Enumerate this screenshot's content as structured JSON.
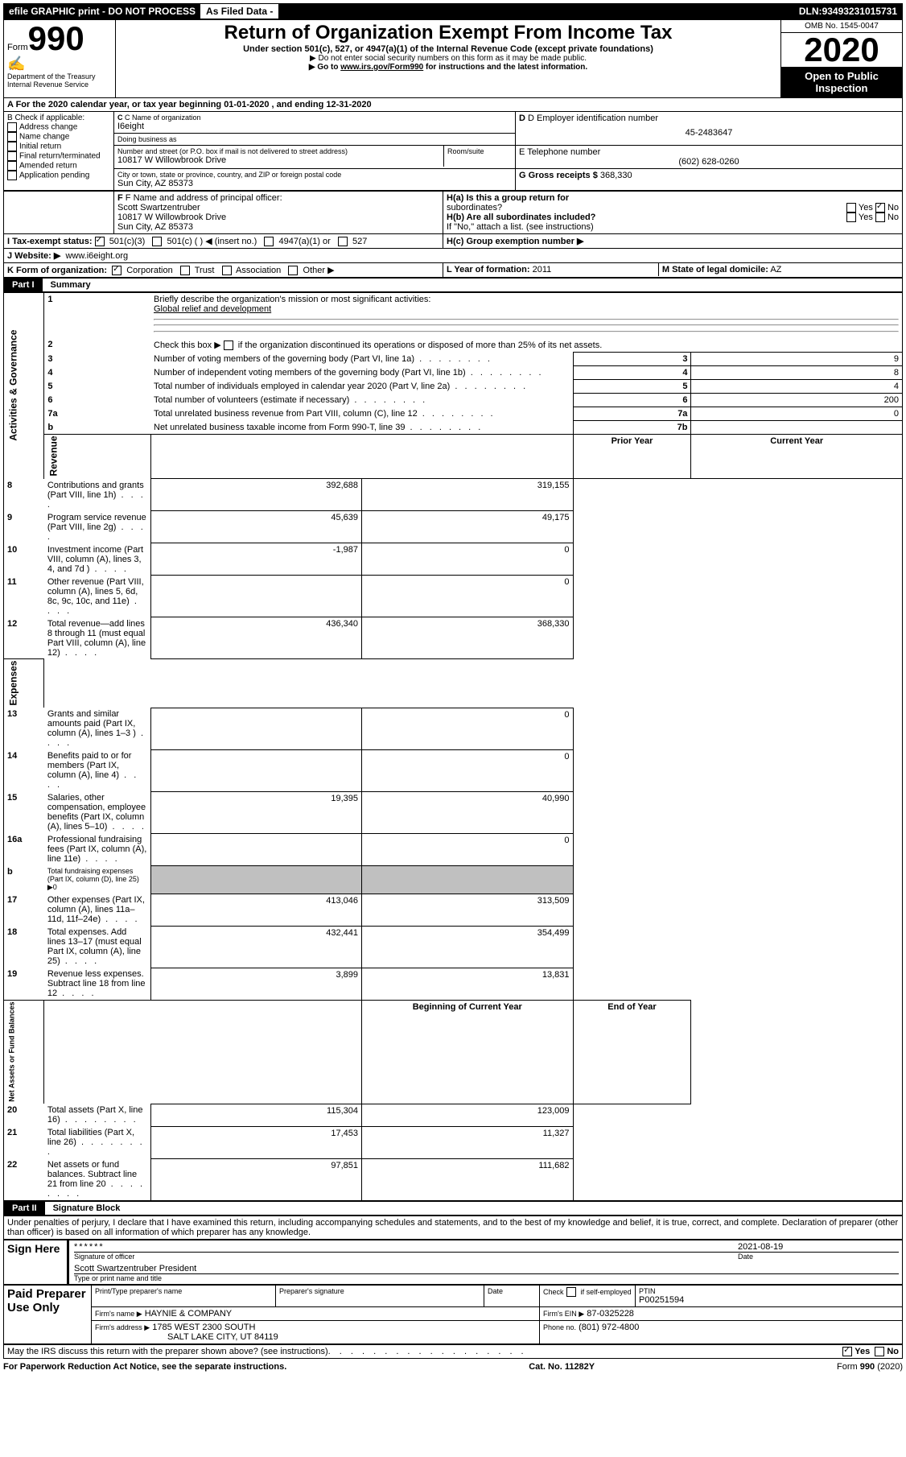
{
  "header": {
    "efile": "efile GRAPHIC print - DO NOT PROCESS",
    "asfiled": "As Filed Data -",
    "dln_label": "DLN:",
    "dln": "93493231015731"
  },
  "top": {
    "form": "Form",
    "num": "990",
    "dept1": "Department of the Treasury",
    "dept2": "Internal Revenue Service",
    "title": "Return of Organization Exempt From Income Tax",
    "sub": "Under section 501(c), 527, or 4947(a)(1) of the Internal Revenue Code (except private foundations)",
    "ssn": "▶ Do not enter social security numbers on this form as it may be made public.",
    "goto_pre": "▶ Go to ",
    "goto_link": "www.irs.gov/Form990",
    "goto_post": " for instructions and the latest information.",
    "omb": "OMB No. 1545-0047",
    "year": "2020",
    "open1": "Open to Public",
    "open2": "Inspection"
  },
  "a_line": "A  For the 2020 calendar year, or tax year beginning 01-01-2020   , and ending 12-31-2020",
  "b": {
    "header": "B Check if applicable:",
    "items": [
      "Address change",
      "Name change",
      "Initial return",
      "Final return/terminated",
      "Amended return",
      "Application pending"
    ]
  },
  "c": {
    "label": "C Name of organization",
    "name": "I6eight",
    "dba": "Doing business as",
    "street_label": "Number and street (or P.O. box if mail is not delivered to street address)",
    "room": "Room/suite",
    "street": "10817 W Willowbrook Drive",
    "city_label": "City or town, state or province, country, and ZIP or foreign postal code",
    "city": "Sun City, AZ  85373"
  },
  "d": {
    "label": "D Employer identification number",
    "val": "45-2483647"
  },
  "e": {
    "label": "E Telephone number",
    "val": "(602) 628-0260"
  },
  "g": {
    "label": "G Gross receipts $",
    "val": "368,330"
  },
  "f": {
    "label": "F  Name and address of principal officer:",
    "name": "Scott Swartzentruber",
    "street": "10817 W Willowbrook Drive",
    "city": "Sun City, AZ  85373"
  },
  "h": {
    "a": "H(a)  Is this a group return for",
    "a2": "subordinates?",
    "b": "H(b)  Are all subordinates included?",
    "note": "If \"No,\" attach a list. (see instructions)",
    "c": "H(c)  Group exemption number ▶",
    "yes": "Yes",
    "no": "No"
  },
  "i": {
    "label": "I  Tax-exempt status:",
    "o1": "501(c)(3)",
    "o2": "501(c) (   ) ◀ (insert no.)",
    "o3": "4947(a)(1) or",
    "o4": "527"
  },
  "j": {
    "label": "J  Website: ▶",
    "val": "www.i6eight.org"
  },
  "k": {
    "label": "K Form of organization:",
    "corp": "Corporation",
    "trust": "Trust",
    "assoc": "Association",
    "other": "Other ▶"
  },
  "l": {
    "label": "L Year of formation:",
    "val": "2011"
  },
  "m": {
    "label": "M State of legal domicile:",
    "val": "AZ"
  },
  "part1": {
    "num": "Part I",
    "title": "Summary"
  },
  "summary": {
    "side_ag": "Activities & Governance",
    "side_rev": "Revenue",
    "side_exp": "Expenses",
    "side_na": "Net Assets or Fund Balances",
    "l1": "Briefly describe the organization's mission or most significant activities:",
    "l1v": "Global relief and development",
    "l2": "Check this box ▶",
    "l2b": "if the organization discontinued its operations or disposed of more than 25% of its net assets.",
    "rows_ag": [
      {
        "n": "3",
        "t": "Number of voting members of the governing body (Part VI, line 1a)",
        "k": "3",
        "v": "9"
      },
      {
        "n": "4",
        "t": "Number of independent voting members of the governing body (Part VI, line 1b)",
        "k": "4",
        "v": "8"
      },
      {
        "n": "5",
        "t": "Total number of individuals employed in calendar year 2020 (Part V, line 2a)",
        "k": "5",
        "v": "4"
      },
      {
        "n": "6",
        "t": "Total number of volunteers (estimate if necessary)",
        "k": "6",
        "v": "200"
      },
      {
        "n": "7a",
        "t": "Total unrelated business revenue from Part VIII, column (C), line 12",
        "k": "7a",
        "v": "0"
      },
      {
        "n": "b",
        "t": "Net unrelated business taxable income from Form 990-T, line 39",
        "k": "7b",
        "v": ""
      }
    ],
    "prior": "Prior Year",
    "current": "Current Year",
    "rows_rev": [
      {
        "n": "8",
        "t": "Contributions and grants (Part VIII, line 1h)",
        "p": "392,688",
        "c": "319,155"
      },
      {
        "n": "9",
        "t": "Program service revenue (Part VIII, line 2g)",
        "p": "45,639",
        "c": "49,175"
      },
      {
        "n": "10",
        "t": "Investment income (Part VIII, column (A), lines 3, 4, and 7d )",
        "p": "-1,987",
        "c": "0"
      },
      {
        "n": "11",
        "t": "Other revenue (Part VIII, column (A), lines 5, 6d, 8c, 9c, 10c, and 11e)",
        "p": "",
        "c": "0"
      },
      {
        "n": "12",
        "t": "Total revenue—add lines 8 through 11 (must equal Part VIII, column (A), line 12)",
        "p": "436,340",
        "c": "368,330"
      }
    ],
    "rows_exp": [
      {
        "n": "13",
        "t": "Grants and similar amounts paid (Part IX, column (A), lines 1–3 )",
        "p": "",
        "c": "0"
      },
      {
        "n": "14",
        "t": "Benefits paid to or for members (Part IX, column (A), line 4)",
        "p": "",
        "c": "0"
      },
      {
        "n": "15",
        "t": "Salaries, other compensation, employee benefits (Part IX, column (A), lines 5–10)",
        "p": "19,395",
        "c": "40,990"
      },
      {
        "n": "16a",
        "t": "Professional fundraising fees (Part IX, column (A), line 11e)",
        "p": "",
        "c": "0"
      },
      {
        "n": "b",
        "t": "Total fundraising expenses (Part IX, column (D), line 25) ▶0",
        "p": "—",
        "c": "—"
      },
      {
        "n": "17",
        "t": "Other expenses (Part IX, column (A), lines 11a–11d, 11f–24e)",
        "p": "413,046",
        "c": "313,509"
      },
      {
        "n": "18",
        "t": "Total expenses. Add lines 13–17 (must equal Part IX, column (A), line 25)",
        "p": "432,441",
        "c": "354,499"
      },
      {
        "n": "19",
        "t": "Revenue less expenses. Subtract line 18 from line 12",
        "p": "3,899",
        "c": "13,831"
      }
    ],
    "boy": "Beginning of Current Year",
    "eoy": "End of Year",
    "rows_na": [
      {
        "n": "20",
        "t": "Total assets (Part X, line 16)",
        "p": "115,304",
        "c": "123,009"
      },
      {
        "n": "21",
        "t": "Total liabilities (Part X, line 26)",
        "p": "17,453",
        "c": "11,327"
      },
      {
        "n": "22",
        "t": "Net assets or fund balances. Subtract line 21 from line 20",
        "p": "97,851",
        "c": "111,682"
      }
    ]
  },
  "part2": {
    "num": "Part II",
    "title": "Signature Block"
  },
  "perjury": "Under penalties of perjury, I declare that I have examined this return, including accompanying schedules and statements, and to the best of my knowledge and belief, it is true, correct, and complete. Declaration of preparer (other than officer) is based on all information of which preparer has any knowledge.",
  "sign": {
    "here": "Sign Here",
    "stars": "******",
    "sig_label": "Signature of officer",
    "date": "2021-08-19",
    "date_label": "Date",
    "name": "Scott Swartzentruber President",
    "name_label": "Type or print name and title"
  },
  "paid": {
    "header": "Paid Preparer Use Only",
    "c1": "Print/Type preparer's name",
    "c2": "Preparer's signature",
    "c3": "Date",
    "c4a": "Check",
    "c4b": "if self-employed",
    "c5": "PTIN",
    "ptin": "P00251594",
    "firm_label": "Firm's name    ▶",
    "firm": "HAYNIE & COMPANY",
    "ein_label": "Firm's EIN ▶",
    "ein": "87-0325228",
    "addr_label": "Firm's address ▶",
    "addr1": "1785 WEST 2300 SOUTH",
    "addr2": "SALT LAKE CITY, UT  84119",
    "phone_label": "Phone no.",
    "phone": "(801) 972-4800"
  },
  "may": "May the IRS discuss this return with the preparer shown above? (see instructions)",
  "yes": "Yes",
  "no": "No",
  "foot1": "For Paperwork Reduction Act Notice, see the separate instructions.",
  "foot2": "Cat. No. 11282Y",
  "foot3": "Form 990 (2020)"
}
